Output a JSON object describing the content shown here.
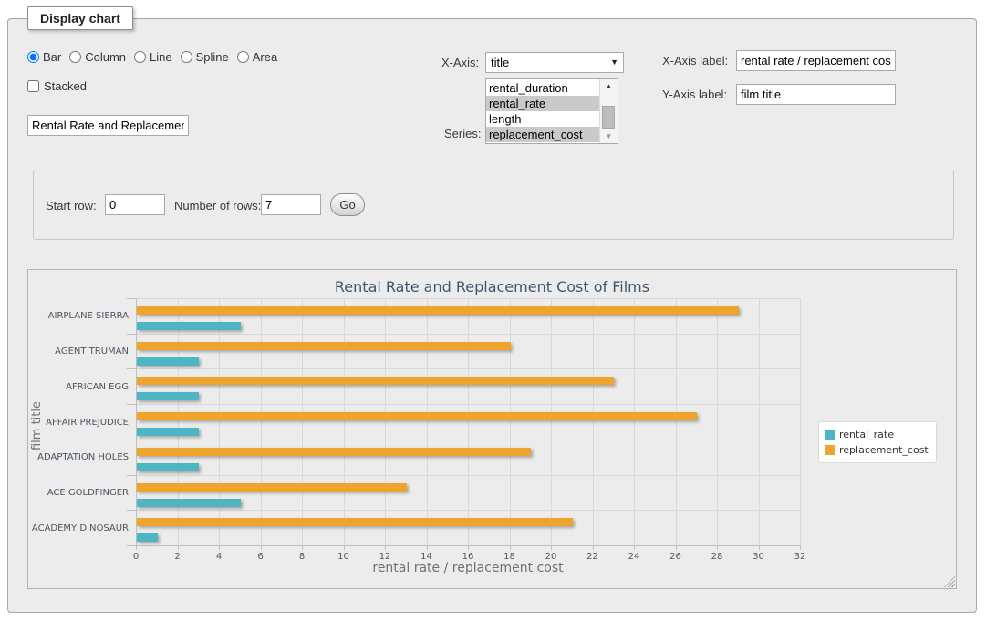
{
  "panel": {
    "legend": "Display chart"
  },
  "chart_type": {
    "options": [
      "Bar",
      "Column",
      "Line",
      "Spline",
      "Area"
    ],
    "selected": "Bar"
  },
  "stacked": {
    "label": "Stacked",
    "checked": false
  },
  "title_input": {
    "value": "Rental Rate and Replacement Cost of Films"
  },
  "x_axis": {
    "label": "X-Axis:",
    "selected": "title"
  },
  "series_select": {
    "label": "Series:",
    "options": [
      {
        "name": "rental_duration",
        "selected": false
      },
      {
        "name": "rental_rate",
        "selected": true
      },
      {
        "name": "length",
        "selected": false
      },
      {
        "name": "replacement_cost",
        "selected": true
      }
    ]
  },
  "x_axis_label": {
    "label": "X-Axis label:",
    "value": "rental rate / replacement cost"
  },
  "y_axis_label": {
    "label": "Y-Axis label:",
    "value": "film title"
  },
  "row_controls": {
    "start_row_label": "Start row:",
    "start_row_value": "0",
    "num_rows_label": "Number of rows:",
    "num_rows_value": "7",
    "go_label": "Go"
  },
  "chart_data": {
    "type": "bar",
    "orientation": "horizontal",
    "title": "Rental Rate and Replacement Cost of Films",
    "categories": [
      "AIRPLANE SIERRA",
      "AGENT TRUMAN",
      "AFRICAN EGG",
      "AFFAIR PREJUDICE",
      "ADAPTATION HOLES",
      "ACE GOLDFINGER",
      "ACADEMY DINOSAUR"
    ],
    "series": [
      {
        "name": "rental_rate",
        "color": "#4DB5C4",
        "values": [
          5,
          3,
          3,
          3,
          3,
          5,
          1
        ]
      },
      {
        "name": "replacement_cost",
        "color": "#EFA42D",
        "values": [
          29,
          18,
          23,
          27,
          19,
          13,
          21
        ]
      }
    ],
    "bar_order_in_group": [
      1,
      0
    ],
    "xlabel": "rental rate / replacement cost",
    "ylabel": "film title",
    "xlim": [
      0,
      32
    ],
    "x_tick_step": 2,
    "grid": true,
    "legend_position": "right"
  }
}
